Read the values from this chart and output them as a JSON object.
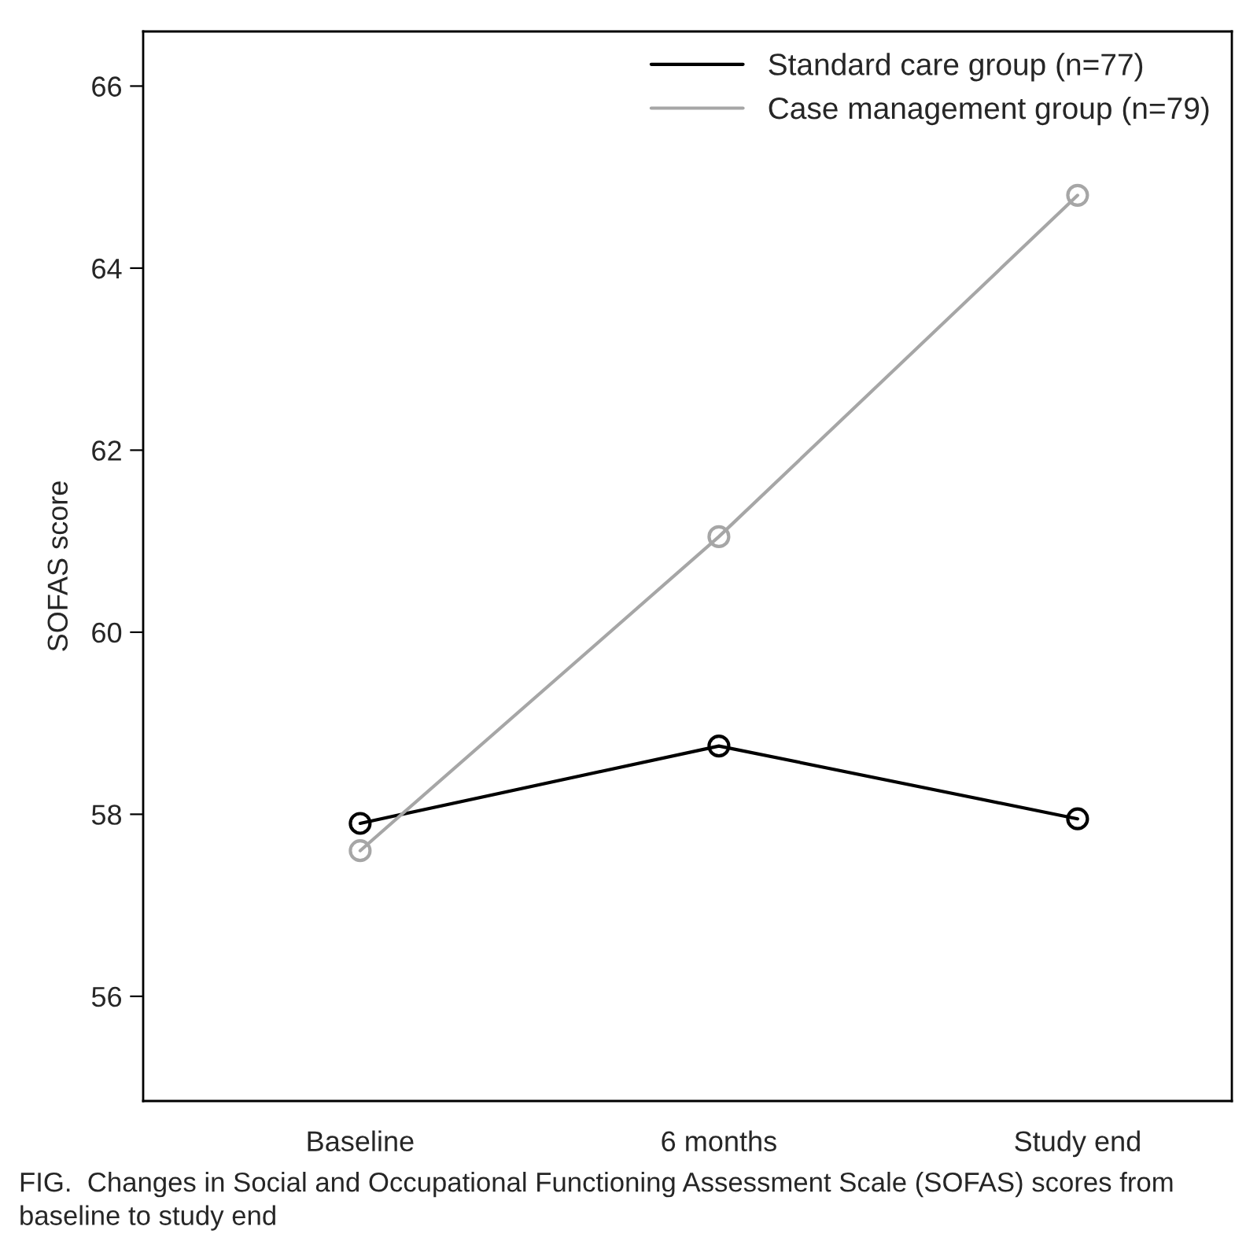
{
  "chart_data": {
    "type": "line",
    "ylabel": "SOFAS score",
    "categories": [
      "Baseline",
      "6 months",
      "Study end"
    ],
    "series": [
      {
        "name": "Standard care group (n=77)",
        "color": "#000000",
        "values": [
          57.9,
          58.75,
          57.95
        ]
      },
      {
        "name": "Case management group (n=79)",
        "color": "#a6a6a6",
        "values": [
          57.6,
          61.05,
          64.8
        ]
      }
    ],
    "ylim": [
      54.85,
      66.6
    ],
    "yticks": [
      56,
      58,
      60,
      62,
      64,
      66
    ],
    "marker": "circle",
    "line_style": "solid",
    "grid": false,
    "legend": "top right",
    "annotations": [
      "FIG.  Changes in Social and Occupational Functioning Assessment Scale (SOFAS) scores from baseline to study end"
    ]
  }
}
